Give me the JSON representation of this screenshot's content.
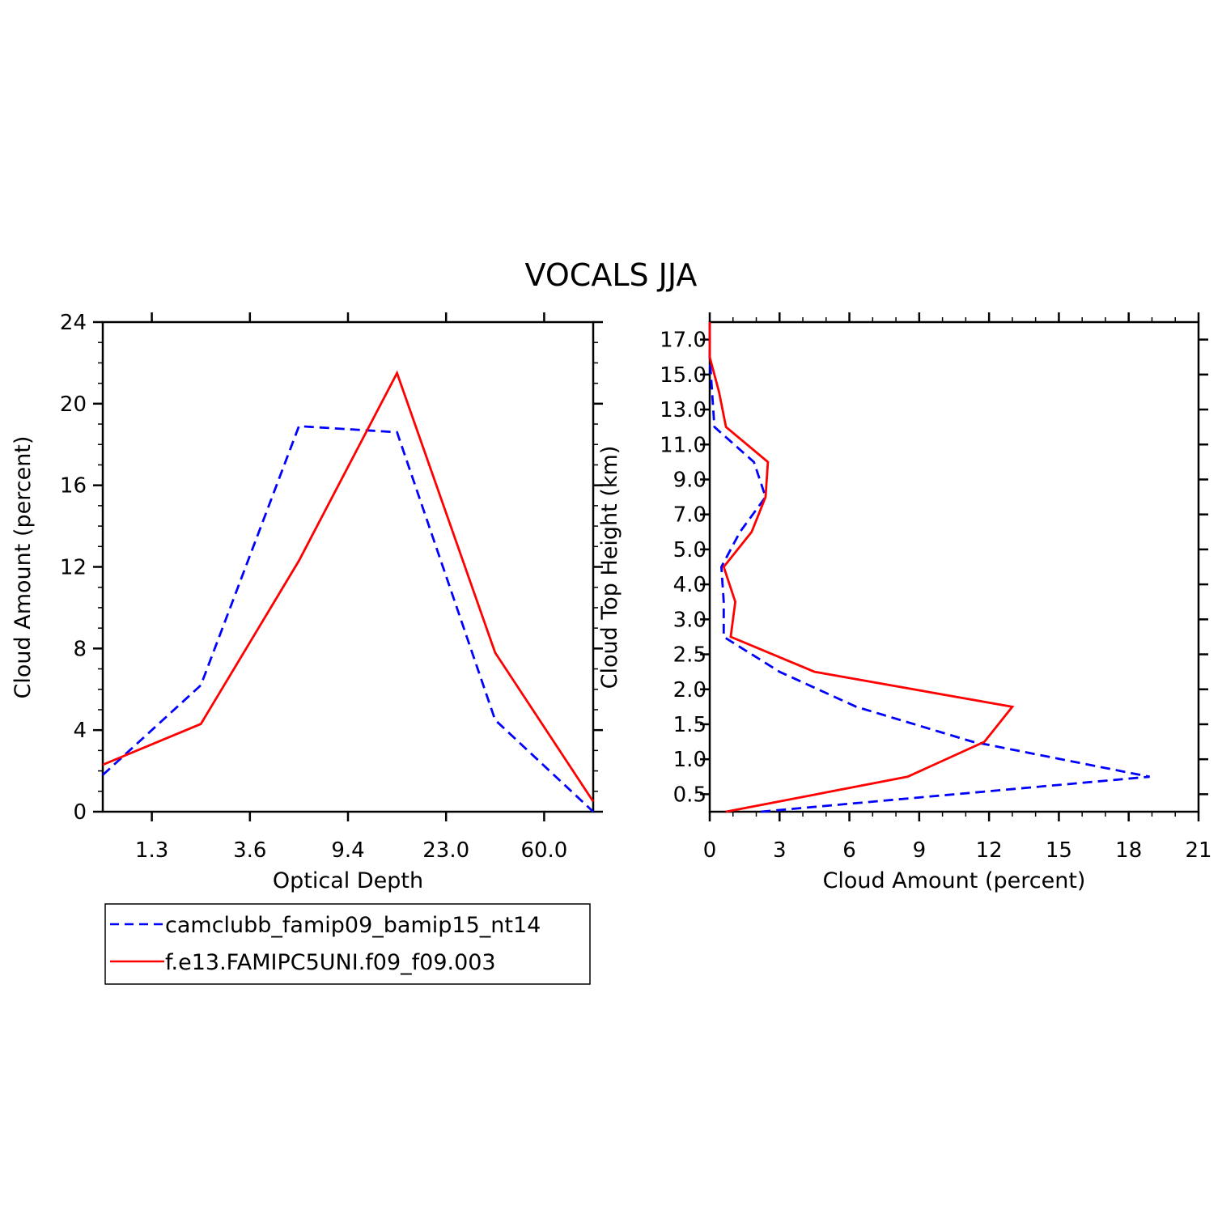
{
  "title": "VOCALS JJA",
  "legend": {
    "items": [
      {
        "label": "camclubb_famip09_bamip15_nt14",
        "color": "#0000ff",
        "dash": true
      },
      {
        "label": "f.e13.FAMIPC5UNI.f09_f09.003",
        "color": "#ff0000",
        "dash": false
      }
    ]
  },
  "chart_data": [
    {
      "type": "line",
      "xlabel": "Optical Depth",
      "ylabel": "Cloud Amount (percent)",
      "x_tick_labels": [
        "1.3",
        "3.6",
        "9.4",
        "23.0",
        "60.0"
      ],
      "y_ticks": [
        "0",
        "4",
        "8",
        "12",
        "16",
        "20",
        "24"
      ],
      "ylim": [
        0,
        24
      ],
      "x_bin_index": [
        0,
        1,
        2,
        3,
        4,
        5
      ],
      "series": [
        {
          "name": "camclubb_famip09_bamip15_nt14",
          "color": "#0000ff",
          "values": [
            1.8,
            6.2,
            18.9,
            18.6,
            4.5,
            0.0
          ]
        },
        {
          "name": "f.e13.FAMIPC5UNI.f09_f09.003",
          "color": "#ff0000",
          "values": [
            2.3,
            4.3,
            12.3,
            21.5,
            7.8,
            0.5
          ]
        }
      ]
    },
    {
      "type": "line",
      "xlabel": "Cloud Amount (percent)",
      "ylabel": "Cloud Top Height (km)",
      "x_ticks": [
        "0",
        "3",
        "6",
        "9",
        "12",
        "15",
        "18",
        "21"
      ],
      "xlim": [
        0,
        21
      ],
      "y_tick_labels": [
        "0.5",
        "1.0",
        "1.5",
        "2.0",
        "2.5",
        "3.0",
        "4.0",
        "5.0",
        "7.0",
        "9.0",
        "11.0",
        "13.0",
        "15.0",
        "17.0"
      ],
      "height_levels": [
        "0.5",
        "1.0",
        "1.5",
        "2.0",
        "2.5",
        "3.0",
        "4.0",
        "5.0",
        "7.0",
        "9.0",
        "11.0",
        "13.0",
        "15.0",
        "17.0"
      ],
      "series": [
        {
          "name": "camclubb_famip09_bamip15_nt14",
          "color": "#0000ff",
          "heights_index": [
            -0.5,
            0.5,
            1.5,
            2.5,
            3.5,
            4.5,
            5.5,
            6.5,
            7.5,
            8.5,
            9.5,
            10.5,
            11.5,
            12.5,
            13.5
          ],
          "values": [
            2.2,
            18.9,
            11.3,
            6.3,
            3.0,
            0.6,
            0.6,
            0.5,
            1.3,
            2.4,
            1.9,
            0.2,
            0.1,
            0.0,
            0.0
          ]
        },
        {
          "name": "f.e13.FAMIPC5UNI.f09_f09.003",
          "color": "#ff0000",
          "heights_index": [
            -0.5,
            0.5,
            1.5,
            2.5,
            3.5,
            4.5,
            5.5,
            6.5,
            7.5,
            8.5,
            9.5,
            10.5,
            11.5,
            12.5,
            13.5
          ],
          "values": [
            0.7,
            8.5,
            11.8,
            13.0,
            4.5,
            0.9,
            1.1,
            0.6,
            1.8,
            2.4,
            2.5,
            0.7,
            0.4,
            0.0,
            0.0
          ]
        }
      ]
    }
  ]
}
